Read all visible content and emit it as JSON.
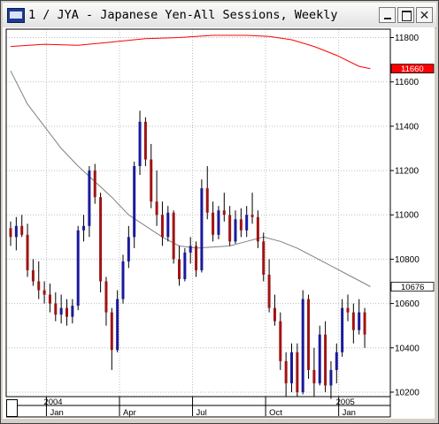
{
  "window": {
    "title": "1 / JYA - Japanese Yen-All Sessions, Weekly",
    "icon": "chart-app-icon",
    "minimize_icon": "minimize-icon",
    "maximize_icon": "maximize-icon",
    "close_icon": "close-icon"
  },
  "chart_data": {
    "type": "candlestick",
    "title": "1 / JYA - Japanese Yen-All Sessions, Weekly",
    "xlabel": "",
    "ylabel": "",
    "ylim": [
      10140,
      11840
    ],
    "y_ticks": [
      10200,
      10400,
      10600,
      10800,
      11000,
      11200,
      11400,
      11600,
      11800
    ],
    "x_ticks": [
      {
        "label": "Jan",
        "week": 7
      },
      {
        "label": "Apr",
        "week": 20
      },
      {
        "label": "Jul",
        "week": 33
      },
      {
        "label": "Oct",
        "week": 46
      },
      {
        "label": "Jan",
        "week": 59
      }
    ],
    "year_labels": [
      {
        "label": "2004",
        "week": 7
      },
      {
        "label": "2005",
        "week": 59
      }
    ],
    "grid": true,
    "price_markers": [
      {
        "value": 11660,
        "text": "11660",
        "color": "#ff0000",
        "text_color": "#ffffff"
      },
      {
        "value": 10676,
        "text": "10676",
        "color": "#ffffff",
        "text_color": "#000000"
      }
    ],
    "candles": [
      [
        10940,
        10970,
        10860,
        10900
      ],
      [
        10900,
        10990,
        10840,
        10950
      ],
      [
        10950,
        11000,
        10900,
        10910
      ],
      [
        10910,
        10960,
        10720,
        10750
      ],
      [
        10750,
        10800,
        10680,
        10700
      ],
      [
        10700,
        10790,
        10620,
        10660
      ],
      [
        10660,
        10700,
        10600,
        10640
      ],
      [
        10640,
        10690,
        10560,
        10600
      ],
      [
        10600,
        10650,
        10520,
        10550
      ],
      [
        10550,
        10640,
        10510,
        10580
      ],
      [
        10580,
        10620,
        10500,
        10540
      ],
      [
        10540,
        10620,
        10510,
        10590
      ],
      [
        10590,
        10950,
        10570,
        10930
      ],
      [
        10930,
        11000,
        10880,
        10950
      ],
      [
        10950,
        11220,
        10900,
        11200
      ],
      [
        11200,
        11230,
        11050,
        11080
      ],
      [
        11080,
        11100,
        10650,
        10700
      ],
      [
        10700,
        10720,
        10500,
        10560
      ],
      [
        10560,
        10580,
        10300,
        10390
      ],
      [
        10390,
        10660,
        10380,
        10620
      ],
      [
        10620,
        10820,
        10600,
        10790
      ],
      [
        10790,
        10950,
        10760,
        10900
      ],
      [
        10900,
        11240,
        10850,
        11220
      ],
      [
        11220,
        11470,
        11180,
        11420
      ],
      [
        11420,
        11440,
        11220,
        11250
      ],
      [
        11250,
        11320,
        11030,
        11060
      ],
      [
        11060,
        11200,
        10950,
        11000
      ],
      [
        11000,
        11060,
        10860,
        10900
      ],
      [
        10900,
        11040,
        10880,
        11010
      ],
      [
        11010,
        11020,
        10780,
        10800
      ],
      [
        10800,
        10860,
        10680,
        10710
      ],
      [
        10710,
        10850,
        10700,
        10830
      ],
      [
        10830,
        10900,
        10780,
        10860
      ],
      [
        10860,
        10880,
        10720,
        10750
      ],
      [
        10750,
        11160,
        10740,
        11120
      ],
      [
        11120,
        11220,
        10980,
        11010
      ],
      [
        11010,
        11060,
        10880,
        10910
      ],
      [
        10910,
        11040,
        10890,
        11020
      ],
      [
        11020,
        11100,
        10970,
        11000
      ],
      [
        11000,
        11040,
        10860,
        10880
      ],
      [
        10880,
        11020,
        10870,
        10980
      ],
      [
        10980,
        11030,
        10900,
        10930
      ],
      [
        10930,
        11040,
        10900,
        11000
      ],
      [
        11000,
        11100,
        10960,
        10990
      ],
      [
        10990,
        11020,
        10850,
        10880
      ],
      [
        10880,
        10920,
        10700,
        10730
      ],
      [
        10730,
        10800,
        10560,
        10580
      ],
      [
        10580,
        10640,
        10500,
        10520
      ],
      [
        10520,
        10560,
        10300,
        10340
      ],
      [
        10340,
        10380,
        10180,
        10240
      ],
      [
        10240,
        10420,
        10200,
        10380
      ],
      [
        10380,
        10420,
        10180,
        10200
      ],
      [
        10200,
        10660,
        10190,
        10620
      ],
      [
        10620,
        10640,
        10260,
        10300
      ],
      [
        10300,
        10400,
        10180,
        10240
      ],
      [
        10240,
        10500,
        10230,
        10460
      ],
      [
        10460,
        10520,
        10200,
        10230
      ],
      [
        10230,
        10340,
        10170,
        10300
      ],
      [
        10300,
        10420,
        10240,
        10380
      ],
      [
        10380,
        10620,
        10360,
        10580
      ],
      [
        10580,
        10640,
        10520,
        10560
      ],
      [
        10560,
        10600,
        10420,
        10480
      ],
      [
        10480,
        10620,
        10460,
        10560
      ],
      [
        10560,
        10580,
        10400,
        10460
      ]
    ],
    "series": [
      {
        "color": "#ff0000",
        "values": [
          [
            0,
            11760
          ],
          [
            6,
            11770
          ],
          [
            12,
            11765
          ],
          [
            18,
            11780
          ],
          [
            24,
            11795
          ],
          [
            30,
            11800
          ],
          [
            36,
            11810
          ],
          [
            42,
            11810
          ],
          [
            46,
            11805
          ],
          [
            50,
            11790
          ],
          [
            54,
            11760
          ],
          [
            58,
            11720
          ],
          [
            62,
            11670
          ],
          [
            64,
            11660
          ]
        ]
      },
      {
        "color": "#808080",
        "values": [
          [
            0,
            11650
          ],
          [
            3,
            11500
          ],
          [
            6,
            11400
          ],
          [
            9,
            11300
          ],
          [
            12,
            11220
          ],
          [
            15,
            11150
          ],
          [
            18,
            11080
          ],
          [
            21,
            11000
          ],
          [
            24,
            10950
          ],
          [
            27,
            10900
          ],
          [
            30,
            10860
          ],
          [
            33,
            10850
          ],
          [
            36,
            10855
          ],
          [
            39,
            10860
          ],
          [
            42,
            10880
          ],
          [
            45,
            10900
          ],
          [
            48,
            10880
          ],
          [
            51,
            10850
          ],
          [
            54,
            10810
          ],
          [
            57,
            10770
          ],
          [
            60,
            10730
          ],
          [
            63,
            10690
          ],
          [
            64,
            10676
          ]
        ]
      }
    ]
  }
}
